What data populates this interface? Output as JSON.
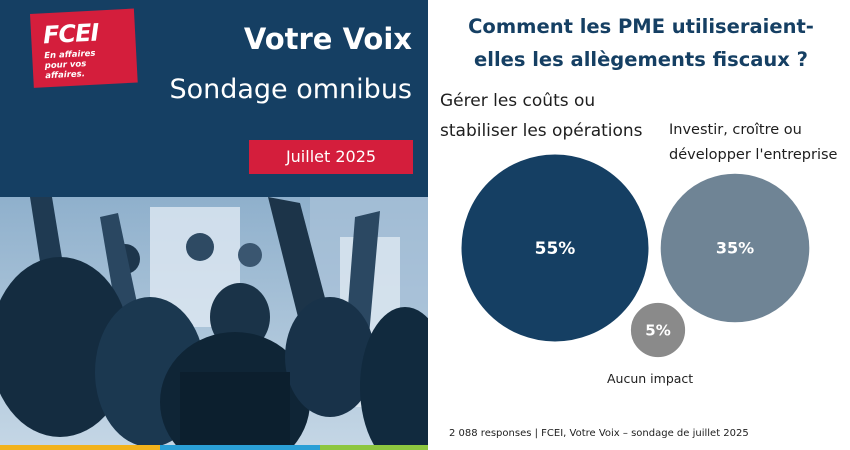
{
  "logo": {
    "name": "FCEI",
    "tagline_1": "En affaires",
    "tagline_2": "pour vos affaires."
  },
  "header": {
    "title": "Votre Voix",
    "subtitle": "Sondage omnibus",
    "date": "Juillet 2025"
  },
  "colors": {
    "navy": "#153f63",
    "red": "#d41e3c",
    "slate": "#6f8495",
    "gray": "#8a8a8a"
  },
  "chart_data": {
    "type": "bubble",
    "title_line_1": "Comment les PME utiliseraient-",
    "title_line_2": "elles les allègements fiscaux ?",
    "unit": "%",
    "series": [
      {
        "label_line_1": "Gérer les coûts ou",
        "label_line_2": "stabiliser les opérations",
        "value": 55,
        "value_label": "55%",
        "color": "#153f63"
      },
      {
        "label_line_1": "Investir, croître ou",
        "label_line_2": "développer  l'entreprise",
        "value": 35,
        "value_label": "35%",
        "color": "#6f8495"
      },
      {
        "label_line_1": "Aucun impact",
        "label_line_2": "",
        "value": 5,
        "value_label": "5%",
        "color": "#8a8a8a"
      }
    ]
  },
  "footnote": "2 088 responses | FCEI, Votre Voix – sondage de juillet 2025"
}
